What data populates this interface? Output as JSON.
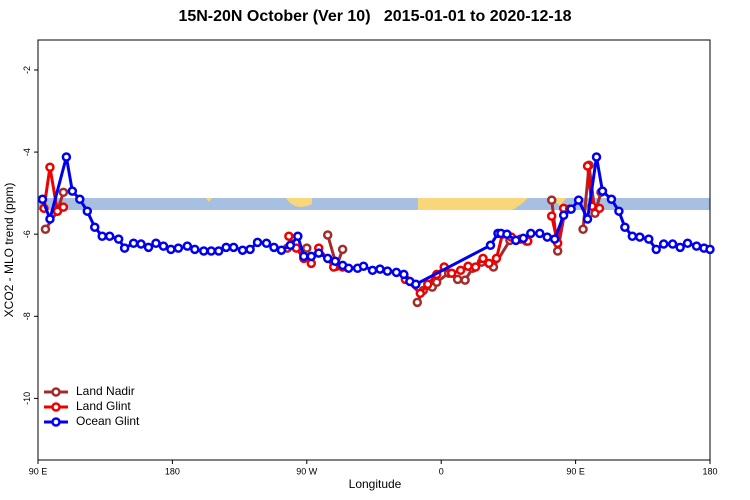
{
  "chart_data": {
    "type": "line",
    "title": "15N-20N October (Ver 10)   2015-01-01 to 2020-12-18",
    "x_label": "Longitude",
    "y_label": "XCO2 - MLO trend (ppm)",
    "xlim": [
      90,
      540
    ],
    "ylim": [
      -11.5,
      -1.27
    ],
    "xticks": [
      {
        "value": 90,
        "label": "90 E"
      },
      180,
      {
        "value": 270,
        "label": "90 W"
      },
      {
        "value": 360,
        "label": "0"
      },
      {
        "value": 450,
        "label": "90 E"
      },
      {
        "value": 540,
        "label": "180"
      }
    ],
    "yticks": [
      -2,
      -4,
      -6,
      -8,
      -10
    ],
    "legend": "bottom-left",
    "series": [
      {
        "name": "Land Nadir",
        "color": "#a52a2a",
        "x": [
          95,
          103,
          107,
          200,
          257,
          270,
          277,
          284,
          290,
          294,
          320,
          344,
          348,
          354,
          357,
          365,
          371,
          376,
          381,
          387,
          395,
          406,
          417,
          425,
          434,
          438,
          443,
          450,
          455,
          459,
          463,
          467
        ],
        "values": [
          -5.88,
          -5.44,
          -4.98,
          null,
          -6.34,
          -6.34,
          null,
          -6.02,
          -6.78,
          -6.37,
          null,
          -7.66,
          -7.37,
          -7.29,
          -7.17,
          -6.95,
          -7.1,
          -7.12,
          -6.83,
          -6.68,
          -6.8,
          -6.15,
          -6.17,
          null,
          -5.17,
          -6.41,
          -5.41,
          null,
          -5.88,
          -4.32,
          -5.49,
          -4.98
        ]
      },
      {
        "name": "Land Glint",
        "color": "#ee0000",
        "x": [
          94,
          98,
          103,
          107,
          200,
          258,
          263,
          268,
          273,
          278,
          288,
          294,
          320,
          336,
          346,
          351,
          357,
          362,
          367,
          373,
          378,
          383,
          388,
          392,
          397,
          401,
          407,
          413,
          418,
          425,
          434,
          438,
          442,
          446,
          452,
          458,
          461,
          466
        ],
        "values": [
          -5.37,
          -4.37,
          -5.44,
          -5.34,
          null,
          -6.05,
          -6.34,
          -6.59,
          -6.71,
          -6.34,
          -6.8,
          -6.8,
          null,
          -7.1,
          -7.44,
          -7.22,
          -6.98,
          -6.8,
          -6.95,
          -6.88,
          -6.78,
          -6.8,
          -6.59,
          -6.71,
          -6.59,
          -6.0,
          -6.07,
          -6.12,
          -6.17,
          null,
          -5.56,
          -6.22,
          -5.37,
          -5.39,
          null,
          -4.34,
          -5.32,
          -5.37
        ]
      },
      {
        "name": "Ocean Glint",
        "color": "#0000ee",
        "x": [
          93,
          98,
          109,
          113,
          118,
          123,
          128,
          133,
          138,
          144,
          148,
          154,
          159,
          164,
          169,
          174,
          179,
          184,
          190,
          195,
          201,
          206,
          211,
          216,
          221,
          227,
          232,
          237,
          243,
          248,
          253,
          259,
          264,
          268,
          273,
          278,
          284,
          289,
          294,
          298,
          304,
          308,
          314,
          319,
          324,
          330,
          335,
          339,
          343,
          393,
          398,
          400,
          404,
          410,
          415,
          420,
          426,
          431,
          436,
          442,
          447,
          452,
          458,
          464,
          468,
          474,
          479,
          483,
          488,
          493,
          499,
          504,
          509,
          515,
          520,
          525,
          531,
          536,
          540
        ],
        "values": [
          -5.15,
          -5.63,
          -4.12,
          -4.95,
          -5.15,
          -5.44,
          -5.83,
          -6.05,
          -6.05,
          -6.12,
          -6.34,
          -6.22,
          -6.24,
          -6.32,
          -6.22,
          -6.29,
          -6.37,
          -6.34,
          -6.29,
          -6.37,
          -6.41,
          -6.41,
          -6.41,
          -6.32,
          -6.32,
          -6.39,
          -6.37,
          -6.2,
          -6.22,
          -6.32,
          -6.39,
          -6.27,
          -6.05,
          -6.54,
          -6.54,
          -6.46,
          -6.59,
          -6.66,
          -6.76,
          -6.83,
          -6.83,
          -6.78,
          -6.88,
          -6.85,
          -6.9,
          -6.93,
          -6.98,
          -7.15,
          -7.22,
          -6.27,
          -5.98,
          -5.98,
          -6.0,
          -6.15,
          -6.1,
          -5.98,
          -5.98,
          -6.07,
          -6.12,
          -5.54,
          -5.39,
          -5.17,
          -5.63,
          -4.12,
          -4.95,
          -5.15,
          -5.44,
          -5.83,
          -6.05,
          -6.07,
          -6.12,
          -6.37,
          -6.24,
          -6.24,
          -6.32,
          -6.22,
          -6.29,
          -6.34,
          -6.37
        ]
      }
    ]
  }
}
